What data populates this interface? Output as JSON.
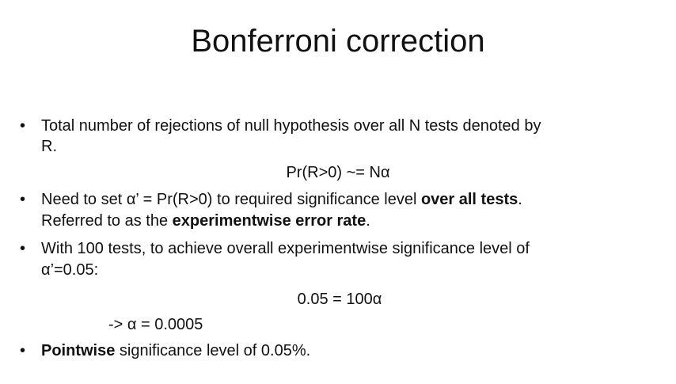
{
  "title": "Bonferroni correction",
  "bullets": [
    {
      "lines": [
        "Total number of rejections of null hypothesis over all N tests denoted by",
        "R."
      ]
    },
    {
      "line1_a": "Need to set α’ = Pr(R>0) to required significance level ",
      "line1_b": "over all tests",
      "line1_c": ".",
      "line2_a": "Referred to as the ",
      "line2_b": "experimentwise error rate",
      "line2_c": "."
    },
    {
      "lines": [
        "With 100 tests, to achieve overall experimentwise significance level of",
        "α’=0.05:"
      ]
    },
    {
      "bold": "Pointwise",
      "rest": " significance level of 0.05%."
    }
  ],
  "equations": {
    "eq1": "Pr(R>0) ~= Nα",
    "eq2": "0.05 = 100α",
    "eq3": "-> α = 0.0005"
  },
  "bullet_glyph": "•"
}
